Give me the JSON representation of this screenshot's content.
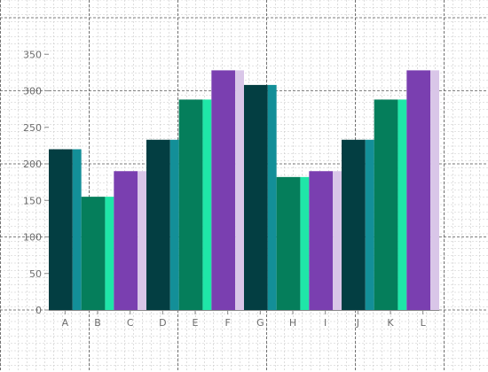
{
  "chart_data": {
    "type": "bar",
    "title": "",
    "xlabel": "",
    "ylabel": "",
    "categories": [
      "A",
      "B",
      "C",
      "D",
      "E",
      "F",
      "G",
      "H",
      "I",
      "J",
      "K",
      "L"
    ],
    "values": [
      220,
      155,
      190,
      233,
      288,
      328,
      308,
      182,
      190,
      233,
      288,
      328
    ],
    "ylim": [
      0,
      390
    ],
    "yticks": [
      0,
      50,
      100,
      150,
      200,
      250,
      300,
      350
    ],
    "grid": true,
    "legend": "none",
    "palette_cycle": [
      {
        "body": "#033e42",
        "side": "#138f98"
      },
      {
        "body": "#057e5b",
        "side": "#1fe6a8"
      },
      {
        "body": "#7a3fb0",
        "side": "#d9c6e8"
      }
    ]
  }
}
